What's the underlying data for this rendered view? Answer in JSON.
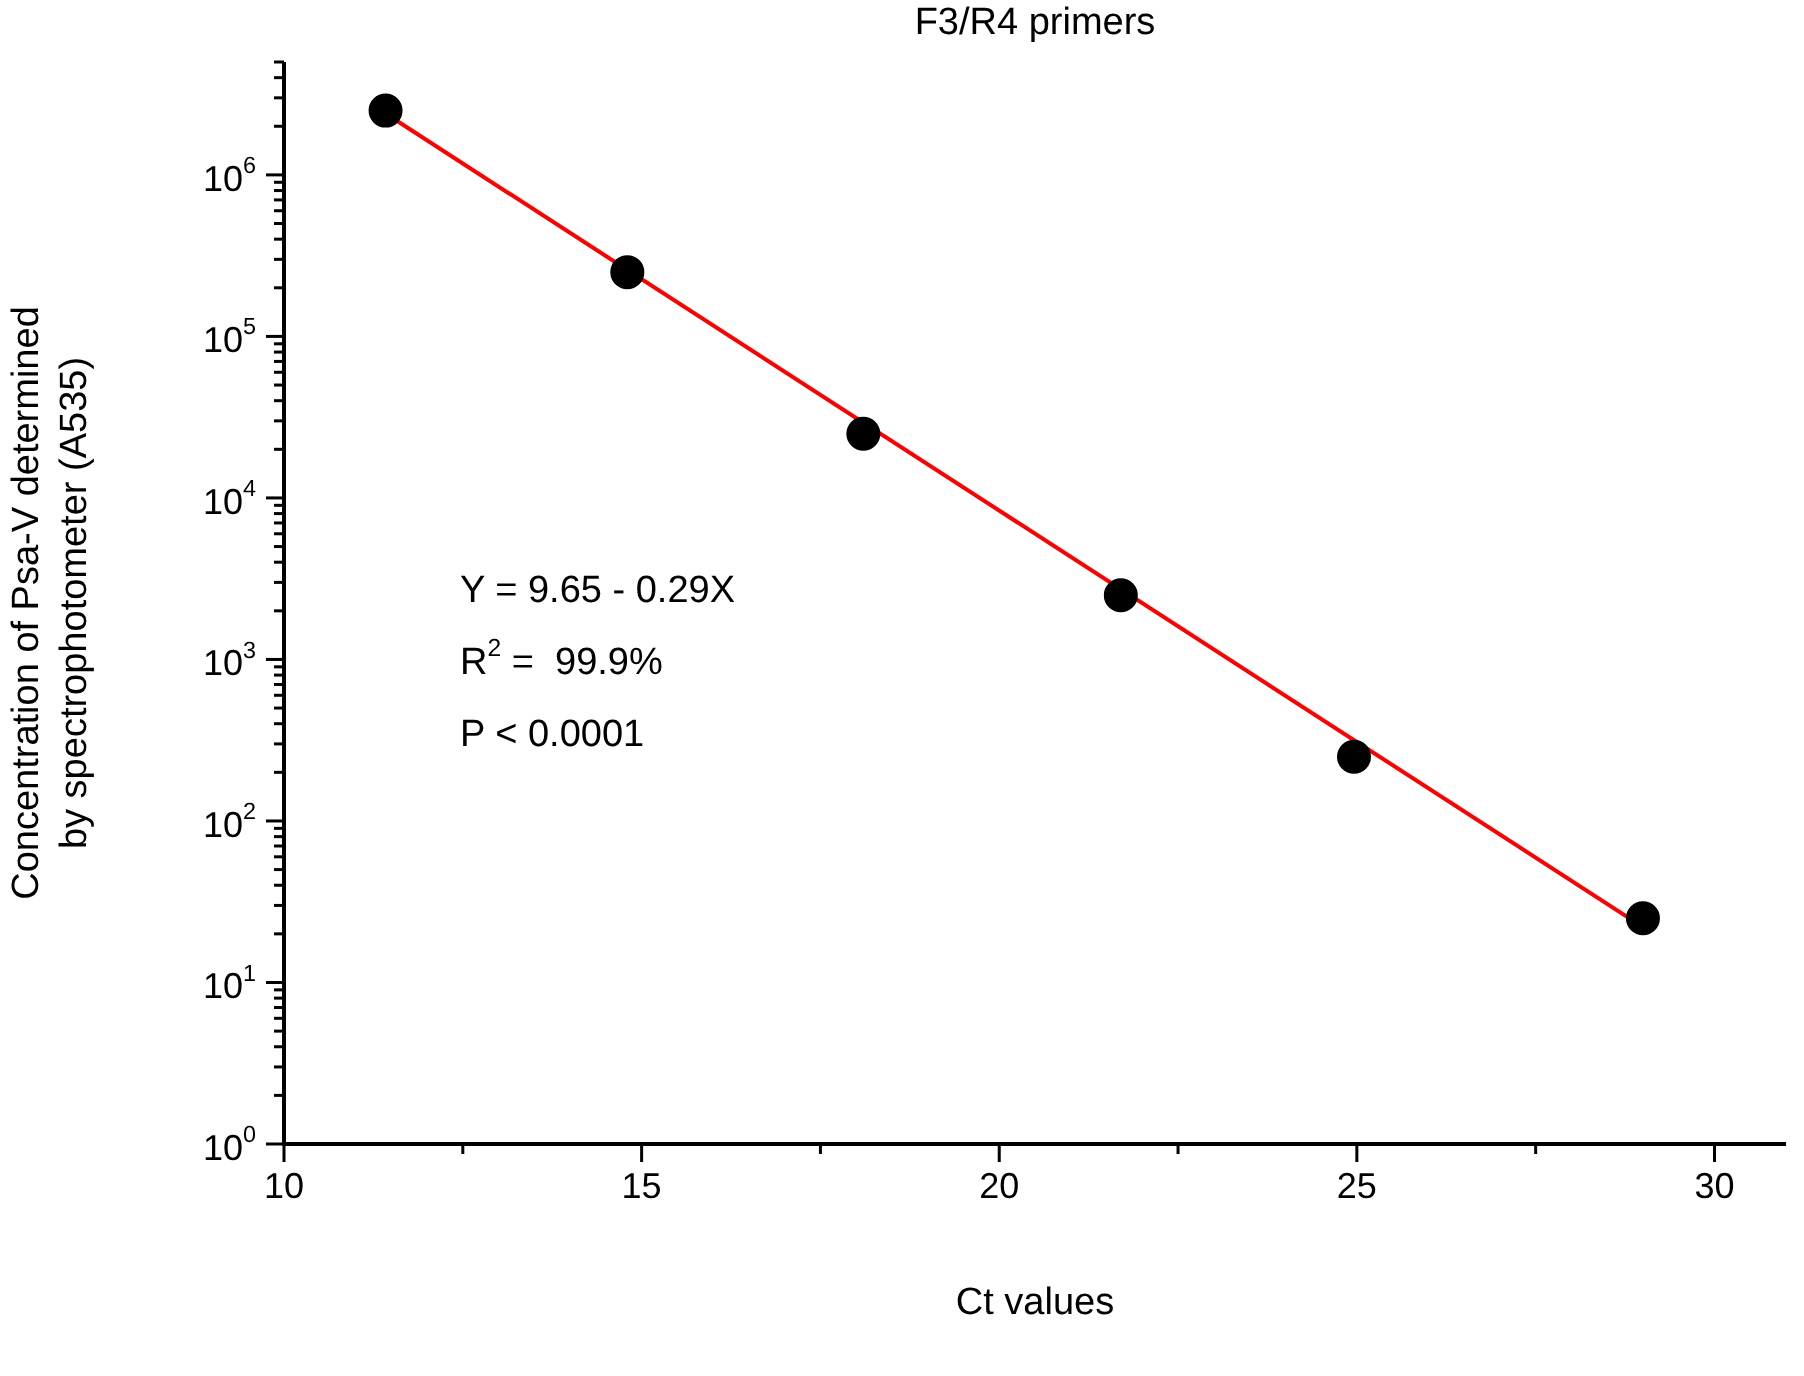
{
  "chart_data": {
    "type": "scatter",
    "title": "F3/R4 primers",
    "xlabel": "Ct values",
    "ylabel": "Concentration of Psa-V determined\nby spectrophotometer (A535)",
    "x": [
      11.42,
      14.8,
      18.1,
      21.7,
      24.96,
      29.0
    ],
    "series": [
      {
        "type": "scatter",
        "color": "#000000",
        "values": [
          2500000,
          250000,
          25000,
          2500,
          250,
          25
        ],
        "marker": "circle"
      },
      {
        "type": "line",
        "color": "#ff0000",
        "x": [
          11.42,
          29.0
        ],
        "values": [
          2400000,
          22
        ],
        "marker": "none",
        "line_style": "solid"
      }
    ],
    "log": "y",
    "xlim": [
      10,
      31
    ],
    "ylim": [
      1,
      5000000
    ],
    "xticks": [
      10,
      {
        "value": 12.5,
        "label": null
      },
      15,
      {
        "value": 17.5,
        "label": null
      },
      20,
      {
        "value": 22.5,
        "label": null
      },
      25,
      {
        "value": 27.5,
        "label": null
      },
      30
    ],
    "yticks": [
      {
        "value": 1,
        "label": "10$^{0}$"
      },
      {
        "value": 2,
        "label": null
      },
      {
        "value": 3,
        "label": null
      },
      {
        "value": 4,
        "label": null
      },
      {
        "value": 5,
        "label": null
      },
      {
        "value": 6,
        "label": null
      },
      {
        "value": 7,
        "label": null
      },
      {
        "value": 8,
        "label": null
      },
      {
        "value": 9,
        "label": null
      },
      {
        "value": 10,
        "label": "10$^{1}$"
      },
      {
        "value": 20,
        "label": null
      },
      {
        "value": 30,
        "label": null
      },
      {
        "value": 40,
        "label": null
      },
      {
        "value": 50,
        "label": null
      },
      {
        "value": 60,
        "label": null
      },
      {
        "value": 70,
        "label": null
      },
      {
        "value": 80,
        "label": null
      },
      {
        "value": 90,
        "label": null
      },
      {
        "value": 100,
        "label": "10$^{2}$"
      },
      {
        "value": 200,
        "label": null
      },
      {
        "value": 300,
        "label": null
      },
      {
        "value": 400,
        "label": null
      },
      {
        "value": 500,
        "label": null
      },
      {
        "value": 600,
        "label": null
      },
      {
        "value": 700,
        "label": null
      },
      {
        "value": 800,
        "label": null
      },
      {
        "value": 900,
        "label": null
      },
      {
        "value": 1000,
        "label": "10$^{3}$"
      },
      {
        "value": 2000,
        "label": null
      },
      {
        "value": 3000,
        "label": null
      },
      {
        "value": 4000,
        "label": null
      },
      {
        "value": 5000,
        "label": null
      },
      {
        "value": 6000,
        "label": null
      },
      {
        "value": 7000,
        "label": null
      },
      {
        "value": 8000,
        "label": null
      },
      {
        "value": 9000,
        "label": null
      },
      {
        "value": 10000,
        "label": "10$^{4}$"
      },
      {
        "value": 20000,
        "label": null
      },
      {
        "value": 30000,
        "label": null
      },
      {
        "value": 40000,
        "label": null
      },
      {
        "value": 50000,
        "label": null
      },
      {
        "value": 60000,
        "label": null
      },
      {
        "value": 70000,
        "label": null
      },
      {
        "value": 80000,
        "label": null
      },
      {
        "value": 90000,
        "label": null
      },
      {
        "value": 100000,
        "label": "10$^{5}$"
      },
      {
        "value": 200000,
        "label": null
      },
      {
        "value": 300000,
        "label": null
      },
      {
        "value": 400000,
        "label": null
      },
      {
        "value": 500000,
        "label": null
      },
      {
        "value": 600000,
        "label": null
      },
      {
        "value": 700000,
        "label": null
      },
      {
        "value": 800000,
        "label": null
      },
      {
        "value": 900000,
        "label": null
      },
      {
        "value": 1000000,
        "label": "10$^{6}$"
      },
      {
        "value": 2000000,
        "label": null
      },
      {
        "value": 3000000,
        "label": null
      },
      {
        "value": 4000000,
        "label": null
      },
      {
        "value": 5000000,
        "label": null
      }
    ],
    "grid": false,
    "legend": false,
    "annotations": [
      "Y = 9.65 - 0.29X",
      "R$^{2}$ =  99.9%",
      "P < 0.0001"
    ]
  }
}
